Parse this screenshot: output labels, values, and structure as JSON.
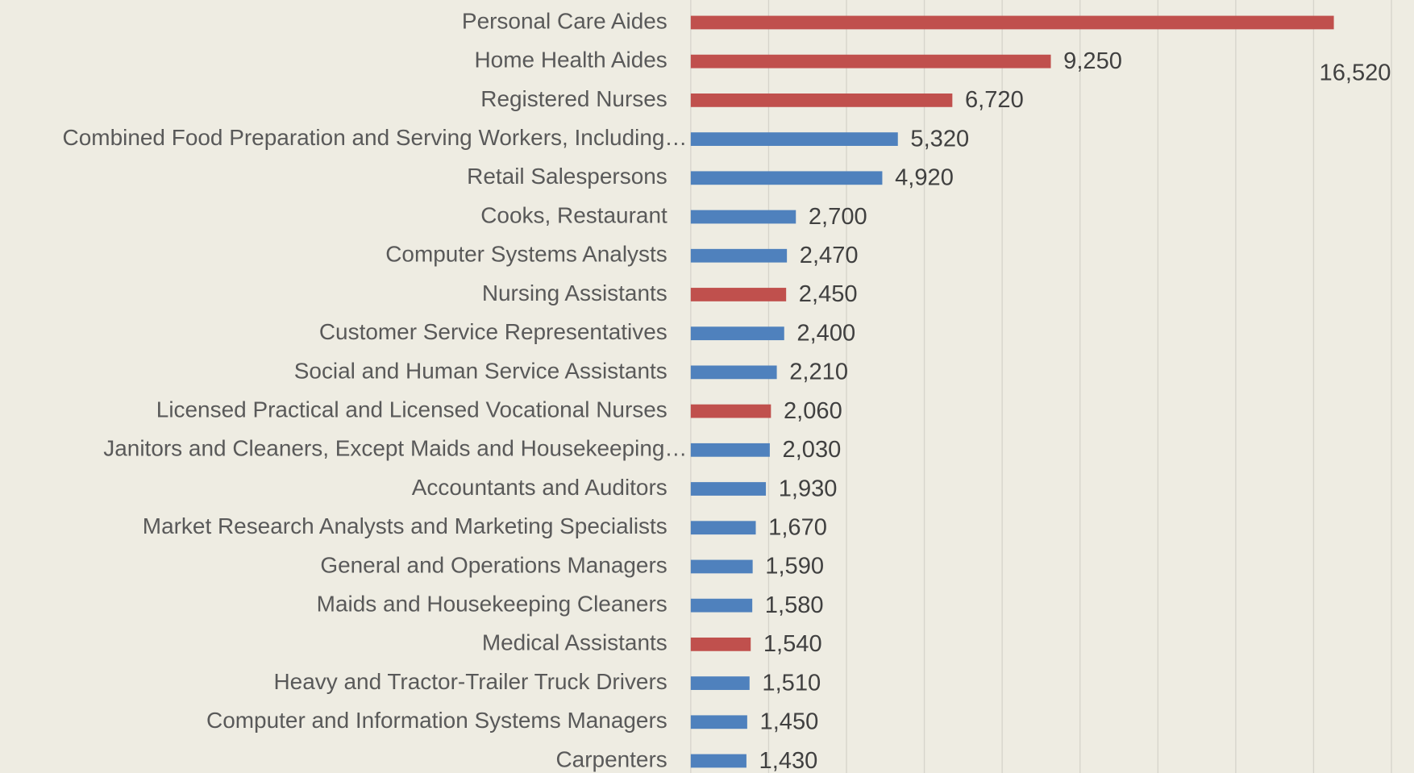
{
  "chart_data": {
    "type": "barh",
    "categories": [
      "Personal Care Aides",
      "Home Health Aides",
      "Registered Nurses",
      "Combined Food Preparation and Serving Workers, Including…",
      "Retail Salespersons",
      "Cooks, Restaurant",
      "Computer Systems Analysts",
      "Nursing Assistants",
      "Customer Service Representatives",
      "Social and Human Service Assistants",
      "Licensed Practical and Licensed Vocational Nurses",
      "Janitors and Cleaners, Except Maids and Housekeeping…",
      "Accountants and Auditors",
      "Market Research Analysts and Marketing Specialists",
      "General and Operations Managers",
      "Maids and Housekeeping Cleaners",
      "Medical Assistants",
      "Heavy and Tractor-Trailer Truck Drivers",
      "Computer and Information Systems Managers",
      "Carpenters"
    ],
    "values": [
      16520,
      9250,
      6720,
      5320,
      4920,
      2700,
      2470,
      2450,
      2400,
      2210,
      2060,
      2030,
      1930,
      1670,
      1590,
      1580,
      1540,
      1510,
      1450,
      1430
    ],
    "value_labels": [
      "16,520",
      "9,250",
      "6,720",
      "5,320",
      "4,920",
      "2,700",
      "2,470",
      "2,450",
      "2,400",
      "2,210",
      "2,060",
      "2,030",
      "1,930",
      "1,670",
      "1,590",
      "1,580",
      "1,540",
      "1,510",
      "1,450",
      "1,430"
    ],
    "colors": [
      "#c0504d",
      "#c0504d",
      "#c0504d",
      "#4f81bd",
      "#4f81bd",
      "#4f81bd",
      "#4f81bd",
      "#c0504d",
      "#4f81bd",
      "#4f81bd",
      "#c0504d",
      "#4f81bd",
      "#4f81bd",
      "#4f81bd",
      "#4f81bd",
      "#4f81bd",
      "#c0504d",
      "#4f81bd",
      "#4f81bd",
      "#4f81bd"
    ],
    "xlim": [
      0,
      18000
    ],
    "xticks": [
      0,
      2000,
      4000,
      6000,
      8000,
      10000,
      12000,
      14000,
      16000,
      18000
    ],
    "grid": true
  }
}
